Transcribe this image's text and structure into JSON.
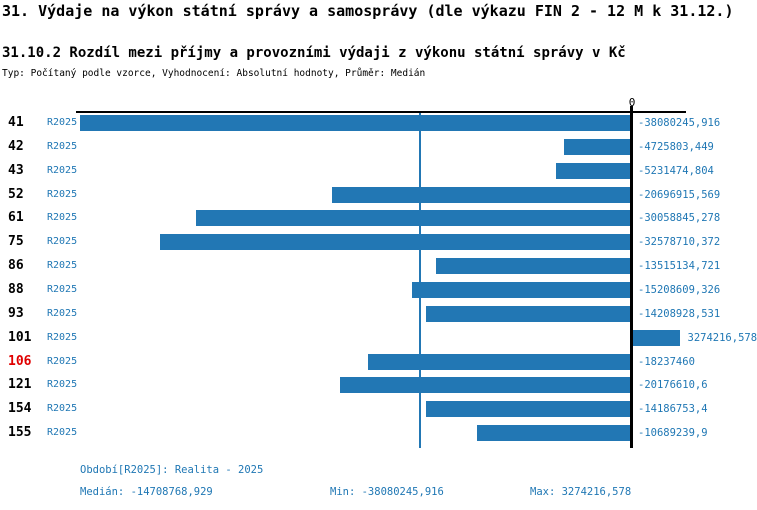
{
  "header": {
    "title": "31. Výdaje na výkon státní správy a samosprávy (dle výkazu FIN 2 - 12 M k 31.12.)",
    "subtitle": "31.10.2 Rozdíl mezi příjmy a provozními výdaji z výkonu státní správy v Kč",
    "meta": "Typ: Počítaný podle vzorce, Vyhodnocení: Absolutní hodnoty, Průměr: Medián"
  },
  "chart_data": {
    "type": "bar",
    "orientation": "horizontal",
    "title": "31.10.2 Rozdíl mezi příjmy a provozními výdaji z výkonu státní správy v Kč",
    "xlabel": "",
    "ylabel": "",
    "axis_zero_label": "0",
    "grid": false,
    "legend": null,
    "series_label": "R2025",
    "categories": [
      "41",
      "42",
      "43",
      "52",
      "61",
      "75",
      "86",
      "88",
      "93",
      "101",
      "106",
      "121",
      "154",
      "155"
    ],
    "values": [
      -38080245.916,
      -4725803.449,
      -5231474.804,
      -20696915.569,
      -30058845.278,
      -32578710.372,
      -13515134.721,
      -15208609.326,
      -14208928.531,
      3274216.578,
      -18237460,
      -20176610.6,
      -14186753.4,
      -10689239.9
    ],
    "value_labels": [
      "-38080245,916",
      "-4725803,449",
      "-5231474,804",
      "-20696915,569",
      "-30058845,278",
      "-32578710,372",
      "-13515134,721",
      "-15208609,326",
      "-14208928,531",
      "3274216,578",
      "-18237460",
      "-20176610,6",
      "-14186753,4",
      "-10689239,9"
    ],
    "highlighted_category": "106",
    "median_value": -14708768.929,
    "min_value": -38080245.916,
    "max_value": 3274216.578,
    "xlim": [
      -38080245.916,
      3274216.578
    ],
    "bar_color": "#2277b4",
    "label_color": "#1f77b4",
    "highlight_color": "#e00000",
    "axis_color": "#000000"
  },
  "footer": {
    "period": "Období[R2025]: Realita - 2025",
    "median": "Medián: -14708768,929",
    "min": "Min: -38080245,916",
    "max": "Max: 3274216,578"
  }
}
